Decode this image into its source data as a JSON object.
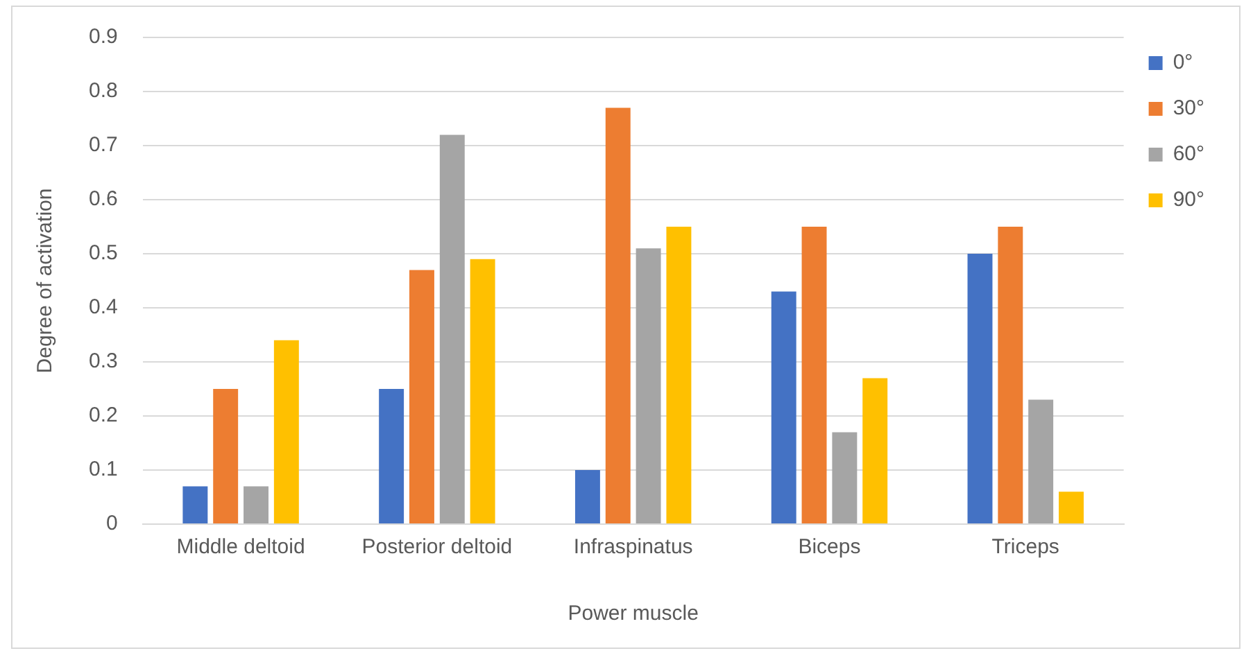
{
  "chart_data": {
    "type": "bar",
    "xlabel": "Power muscle",
    "ylabel": "Degree of activation",
    "categories": [
      "Middle deltoid",
      "Posterior deltoid",
      "Infraspinatus",
      "Biceps",
      "Triceps"
    ],
    "series": [
      {
        "name": "0°",
        "color": "#4472c4",
        "values": [
          0.07,
          0.25,
          0.1,
          0.43,
          0.5
        ]
      },
      {
        "name": "30°",
        "color": "#ed7d31",
        "values": [
          0.25,
          0.47,
          0.77,
          0.55,
          0.55
        ]
      },
      {
        "name": "60°",
        "color": "#a5a5a5",
        "values": [
          0.07,
          0.72,
          0.51,
          0.17,
          0.23
        ]
      },
      {
        "name": "90°",
        "color": "#ffc000",
        "values": [
          0.34,
          0.49,
          0.55,
          0.27,
          0.06
        ]
      }
    ],
    "ylim": [
      0,
      0.9
    ],
    "yticks": [
      0,
      0.1,
      0.2,
      0.3,
      0.4,
      0.5,
      0.6,
      0.7,
      0.8,
      0.9
    ],
    "grid": "y",
    "legend": "top right"
  }
}
